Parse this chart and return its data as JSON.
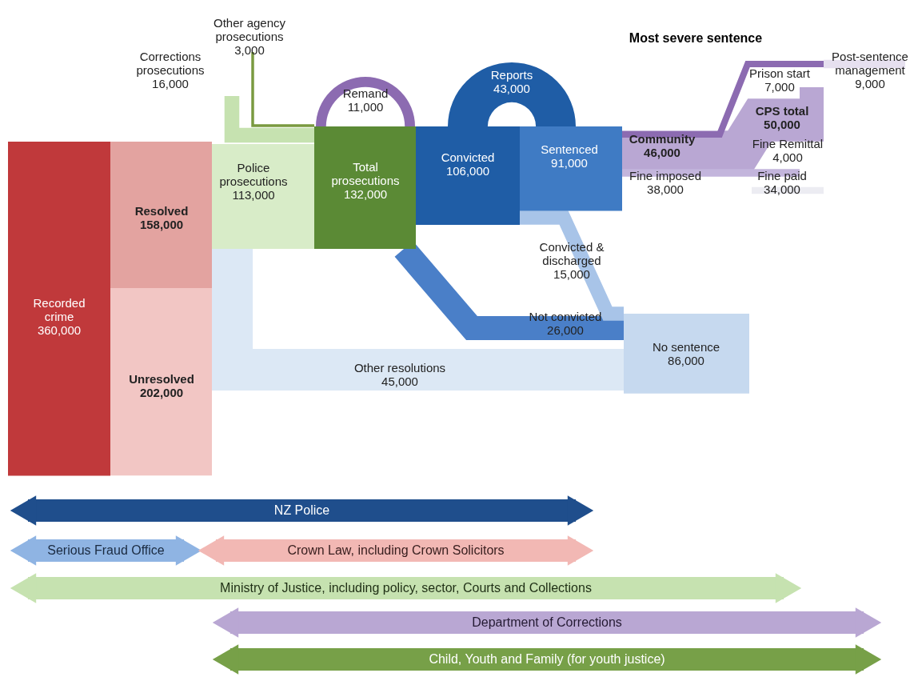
{
  "chart_data": {
    "type": "other",
    "categories": [
      "Recorded crime",
      "Resolved",
      "Unresolved",
      "Police prosecutions",
      "Corrections prosecutions",
      "Other agency prosecutions",
      "Total prosecutions",
      "Remand",
      "Convicted",
      "Reports",
      "Sentenced",
      "Convicted & discharged",
      "Not convicted",
      "Other resolutions",
      "No sentence",
      "Community",
      "Fine imposed",
      "Prison start",
      "Post-sentence management",
      "CPS total",
      "Fine Remittal",
      "Fine paid"
    ],
    "values": [
      360000,
      158000,
      202000,
      113000,
      16000,
      3000,
      132000,
      11000,
      106000,
      43000,
      91000,
      15000,
      26000,
      45000,
      86000,
      46000,
      38000,
      7000,
      9000,
      50000,
      4000,
      34000
    ],
    "colors": [
      "#c0393b",
      "#e3a3a0",
      "#f2c6c4",
      "#d8ecc8",
      "#c6e2b0",
      "#7a9a40",
      "#5b8a35",
      "#8c6bb1",
      "#1f5da6",
      "#1f5da6",
      "#3f7bc4",
      "#a8c4e8",
      "#4a7fc8",
      "#dce8f5",
      "#c6d9ef",
      "#b9a7d3",
      "#c3b5dc",
      "#8c6bb1",
      "#e6e0ef",
      "#b9a7d3",
      "#c3b5dc",
      "#ececf2"
    ],
    "data_labels": true,
    "value_labels": [
      "360,000",
      "158,000",
      "202,000",
      "113,000",
      "16,000",
      "3,000",
      "132,000",
      "11,000",
      "106,000",
      "43,000",
      "91,000",
      "15,000",
      "26,000",
      "45,000",
      "86,000",
      "46,000",
      "38,000",
      "7,000",
      "9,000",
      "50,000",
      "4,000",
      "34,000"
    ],
    "annotations": [
      "Most severe sentence",
      "NZ Police",
      "Serious Fraud Office",
      "Crown Law, including Crown Solicitors",
      "Ministry of Justice, including policy, sector, Courts and Collections",
      "Department of Corrections",
      "Child, Youth and Family (for youth justice)"
    ]
  }
}
